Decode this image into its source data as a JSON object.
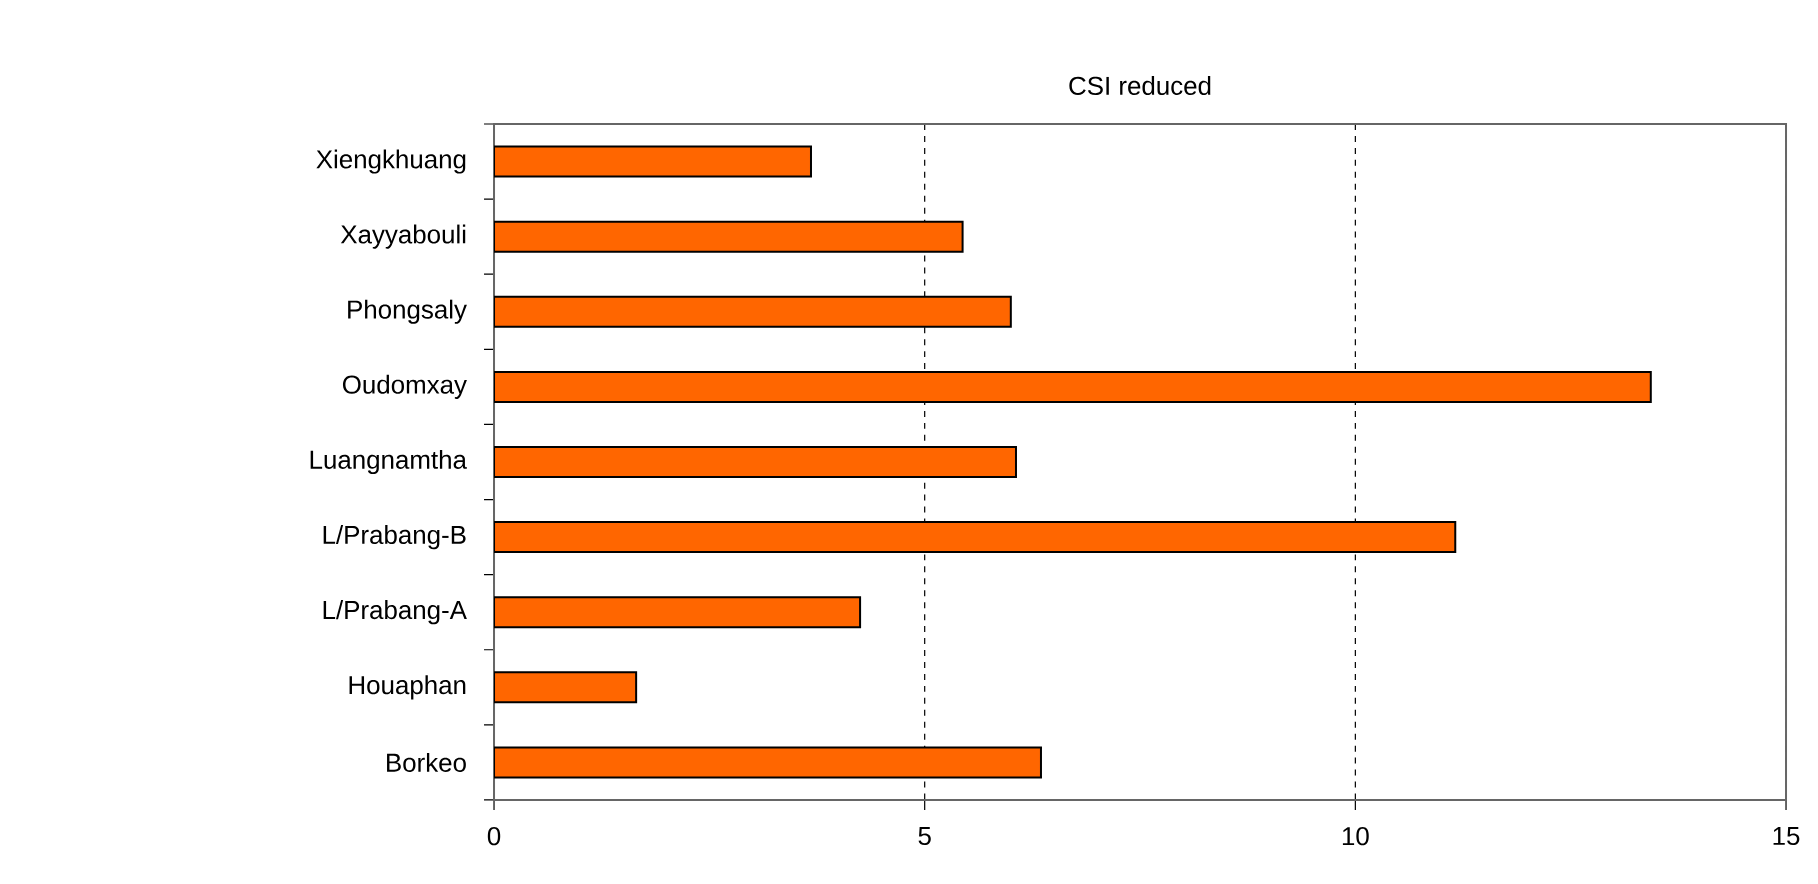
{
  "chart_data": {
    "type": "bar",
    "orientation": "horizontal",
    "title": "CSI reduced",
    "categories": [
      "Xiengkhuang",
      "Xayyabouli",
      "Phongsaly",
      "Oudomxay",
      "Luangnamtha",
      "L/Prabang-B",
      "L/Prabang-A",
      "Houaphan",
      "Borkeo"
    ],
    "values": [
      3.68,
      5.44,
      6.0,
      13.43,
      6.06,
      11.16,
      4.25,
      1.65,
      6.35
    ],
    "color": "#ff6600",
    "xlim": [
      0,
      15
    ],
    "xticks": [
      0,
      5,
      10,
      15
    ],
    "grid": "x"
  }
}
